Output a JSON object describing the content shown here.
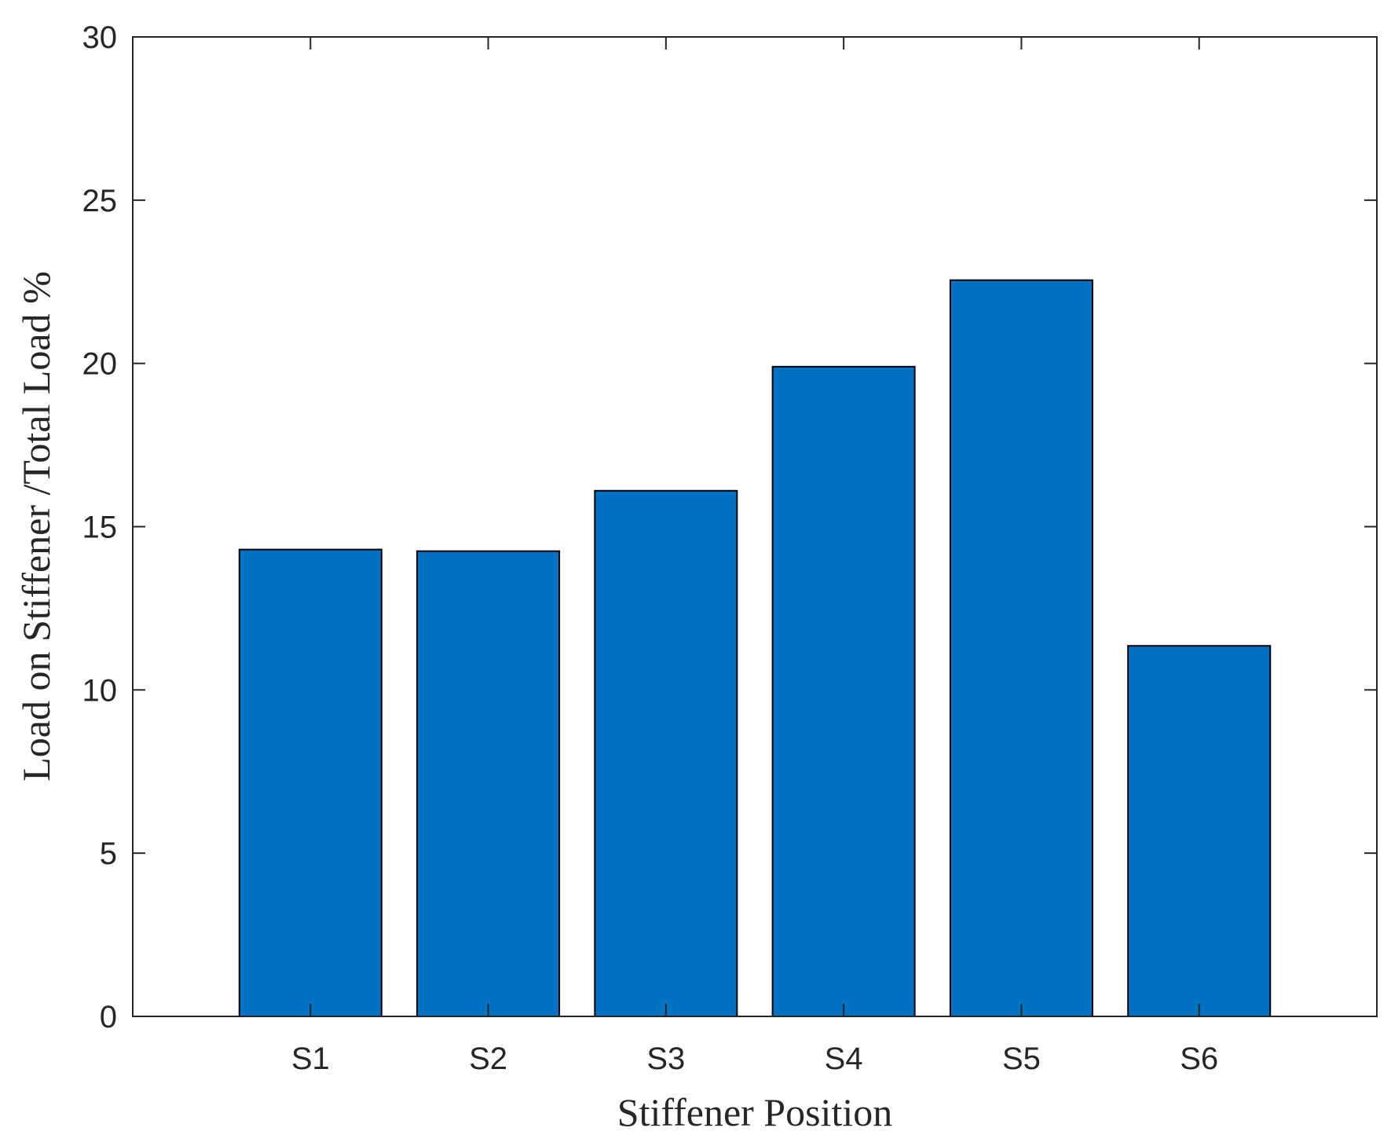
{
  "chart_data": {
    "type": "bar",
    "categories": [
      "S1",
      "S2",
      "S3",
      "S4",
      "S5",
      "S6"
    ],
    "values": [
      14.3,
      14.25,
      16.1,
      19.9,
      22.55,
      11.35
    ],
    "xlabel": "Stiffener Position",
    "ylabel": "Load on Stiffener /Total Load %",
    "ylim": [
      0,
      30
    ],
    "xlim": [
      0,
      7
    ],
    "yticks": [
      0,
      5,
      10,
      15,
      20,
      25,
      30
    ],
    "grid": false,
    "bar_color": "#0072C3",
    "edge_color": "#000000"
  }
}
